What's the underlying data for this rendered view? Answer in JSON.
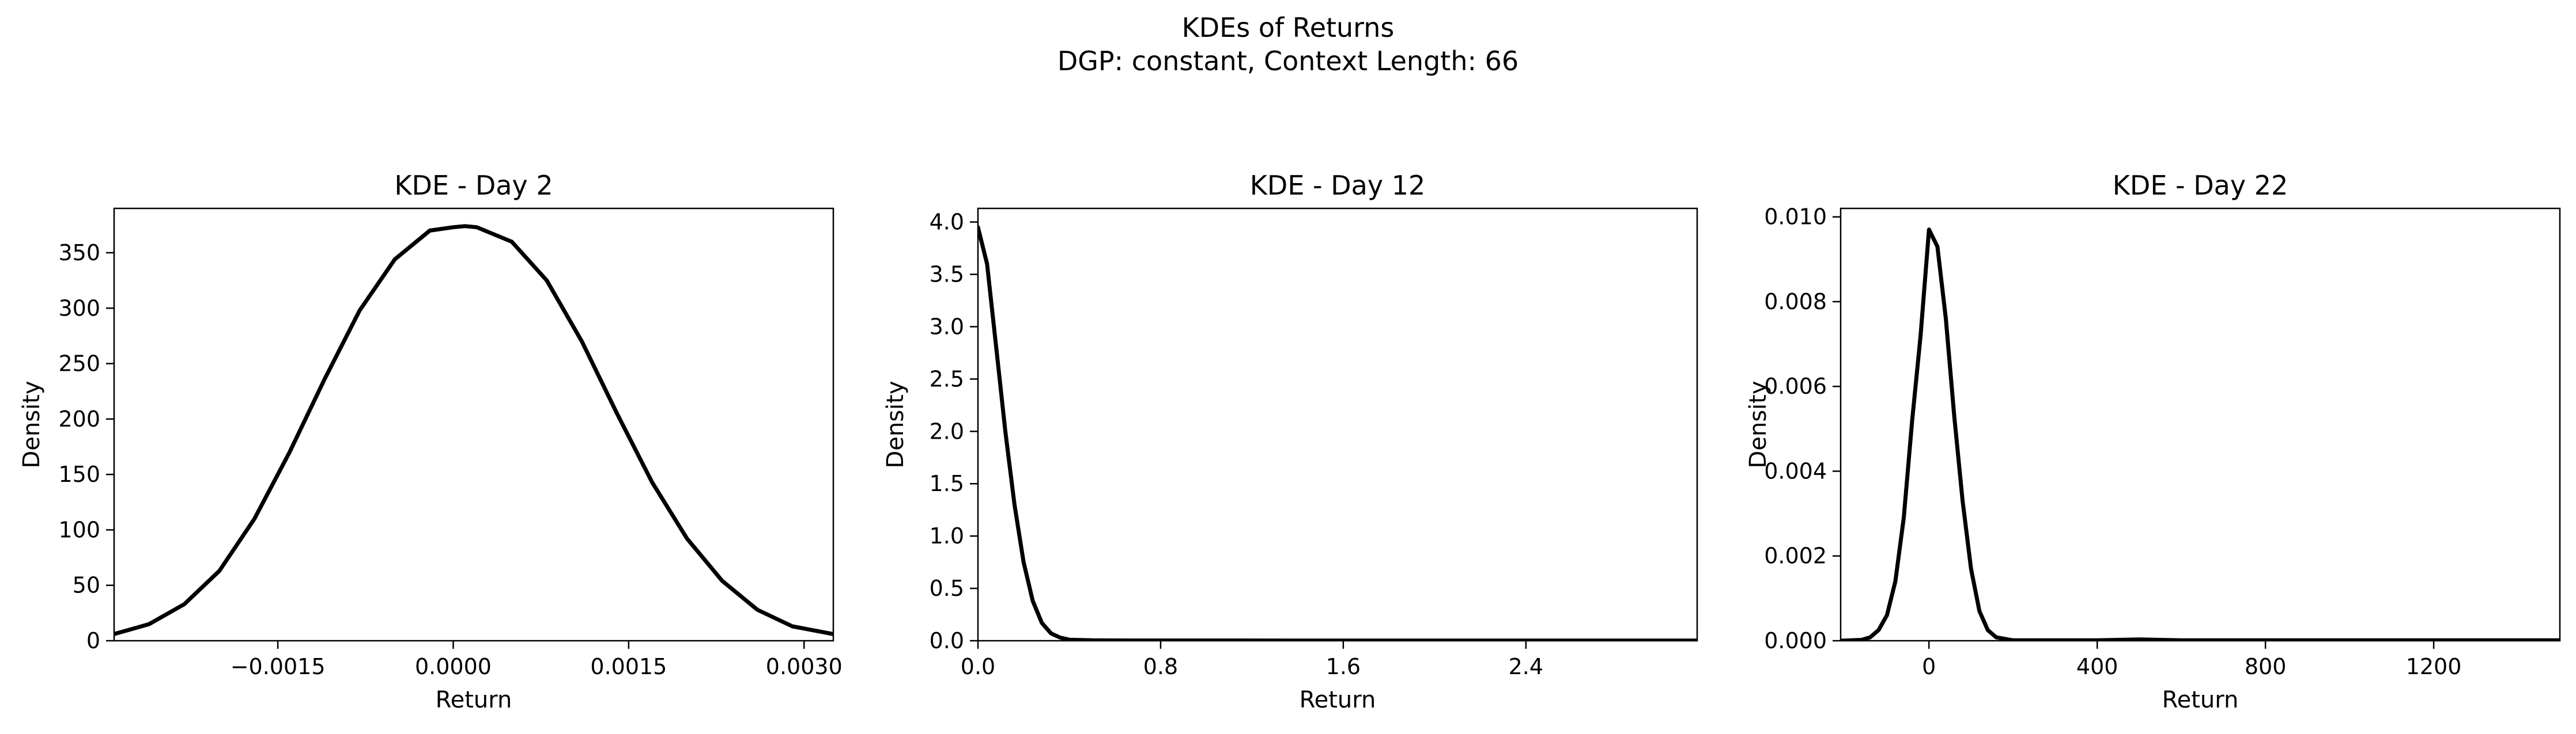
{
  "figure": {
    "suptitle_line1": "KDEs of Returns",
    "suptitle_line2": "DGP: constant, Context Length: 66"
  },
  "colors": {
    "line": "#000000",
    "background": "#ffffff",
    "axes": "#000000"
  },
  "chart_data": [
    {
      "type": "line",
      "title": "KDE - Day 2",
      "xlabel": "Return",
      "ylabel": "Density",
      "xlim": [
        -0.0029,
        0.00325
      ],
      "ylim": [
        0,
        390
      ],
      "xticks": [
        -0.0015,
        0.0,
        0.0015,
        0.003
      ],
      "xtick_labels": [
        "−0.0015",
        "0.0000",
        "0.0015",
        "0.0030"
      ],
      "yticks": [
        0,
        50,
        100,
        150,
        200,
        250,
        300,
        350
      ],
      "ytick_labels": [
        "0",
        "50",
        "100",
        "150",
        "200",
        "250",
        "300",
        "350"
      ],
      "series": [
        {
          "name": "KDE",
          "x": [
            -0.0029,
            -0.0026,
            -0.0023,
            -0.002,
            -0.0017,
            -0.0014,
            -0.0011,
            -0.0008,
            -0.0005,
            -0.0002,
            0.0,
            0.0001,
            0.0002,
            0.0005,
            0.0008,
            0.0011,
            0.0014,
            0.0017,
            0.002,
            0.0023,
            0.0026,
            0.0029,
            0.00325
          ],
          "y": [
            6,
            15,
            33,
            63,
            110,
            170,
            236,
            298,
            344,
            370,
            373,
            374,
            373,
            360,
            325,
            270,
            205,
            143,
            92,
            54,
            28,
            13,
            6
          ]
        }
      ]
    },
    {
      "type": "line",
      "title": "KDE - Day 12",
      "xlabel": "Return",
      "ylabel": "Density",
      "xlim": [
        0,
        3.15
      ],
      "ylim": [
        0,
        4.13
      ],
      "xticks": [
        0,
        0.8,
        1.6,
        2.4
      ],
      "xtick_labels": [
        "0.0",
        "0.8",
        "1.6",
        "2.4"
      ],
      "yticks": [
        0,
        0.5,
        1.0,
        1.5,
        2.0,
        2.5,
        3.0,
        3.5,
        4.0
      ],
      "ytick_labels": [
        "0.0",
        "0.5",
        "1.0",
        "1.5",
        "2.0",
        "2.5",
        "3.0",
        "3.5",
        "4.0"
      ],
      "series": [
        {
          "name": "KDE",
          "x": [
            0.0,
            0.04,
            0.08,
            0.12,
            0.16,
            0.2,
            0.24,
            0.28,
            0.32,
            0.36,
            0.4,
            0.5,
            0.7,
            1.0,
            1.5,
            2.0,
            2.5,
            3.15
          ],
          "y": [
            3.95,
            3.6,
            2.8,
            2.0,
            1.3,
            0.75,
            0.38,
            0.17,
            0.07,
            0.03,
            0.01,
            0.004,
            0.002,
            0.002,
            0.001,
            0.001,
            0.001,
            0.001
          ]
        }
      ]
    },
    {
      "type": "line",
      "title": "KDE - Day 22",
      "xlabel": "Return",
      "ylabel": "Density",
      "xlim": [
        -210,
        1500
      ],
      "ylim": [
        0,
        0.0102
      ],
      "xticks": [
        0,
        400,
        800,
        1200
      ],
      "xtick_labels": [
        "0",
        "400",
        "800",
        "1200"
      ],
      "yticks": [
        0,
        0.002,
        0.004,
        0.006,
        0.008,
        0.01
      ],
      "ytick_labels": [
        "0.000",
        "0.002",
        "0.004",
        "0.006",
        "0.008",
        "0.010"
      ],
      "series": [
        {
          "name": "KDE",
          "x": [
            -210,
            -160,
            -140,
            -120,
            -100,
            -80,
            -60,
            -40,
            -20,
            0,
            20,
            40,
            60,
            80,
            100,
            120,
            140,
            160,
            200,
            300,
            400,
            450,
            500,
            550,
            600,
            800,
            1000,
            1200,
            1500
          ],
          "y": [
            0,
            2e-05,
            8e-05,
            0.00025,
            0.0006,
            0.0014,
            0.0029,
            0.0052,
            0.0072,
            0.0097,
            0.0093,
            0.0076,
            0.0053,
            0.0033,
            0.0017,
            0.0007,
            0.00025,
            8e-05,
            1e-05,
            1e-05,
            1e-05,
            2e-05,
            3e-05,
            2e-05,
            1e-05,
            1e-05,
            1e-05,
            1e-05,
            1e-05
          ]
        }
      ]
    }
  ]
}
